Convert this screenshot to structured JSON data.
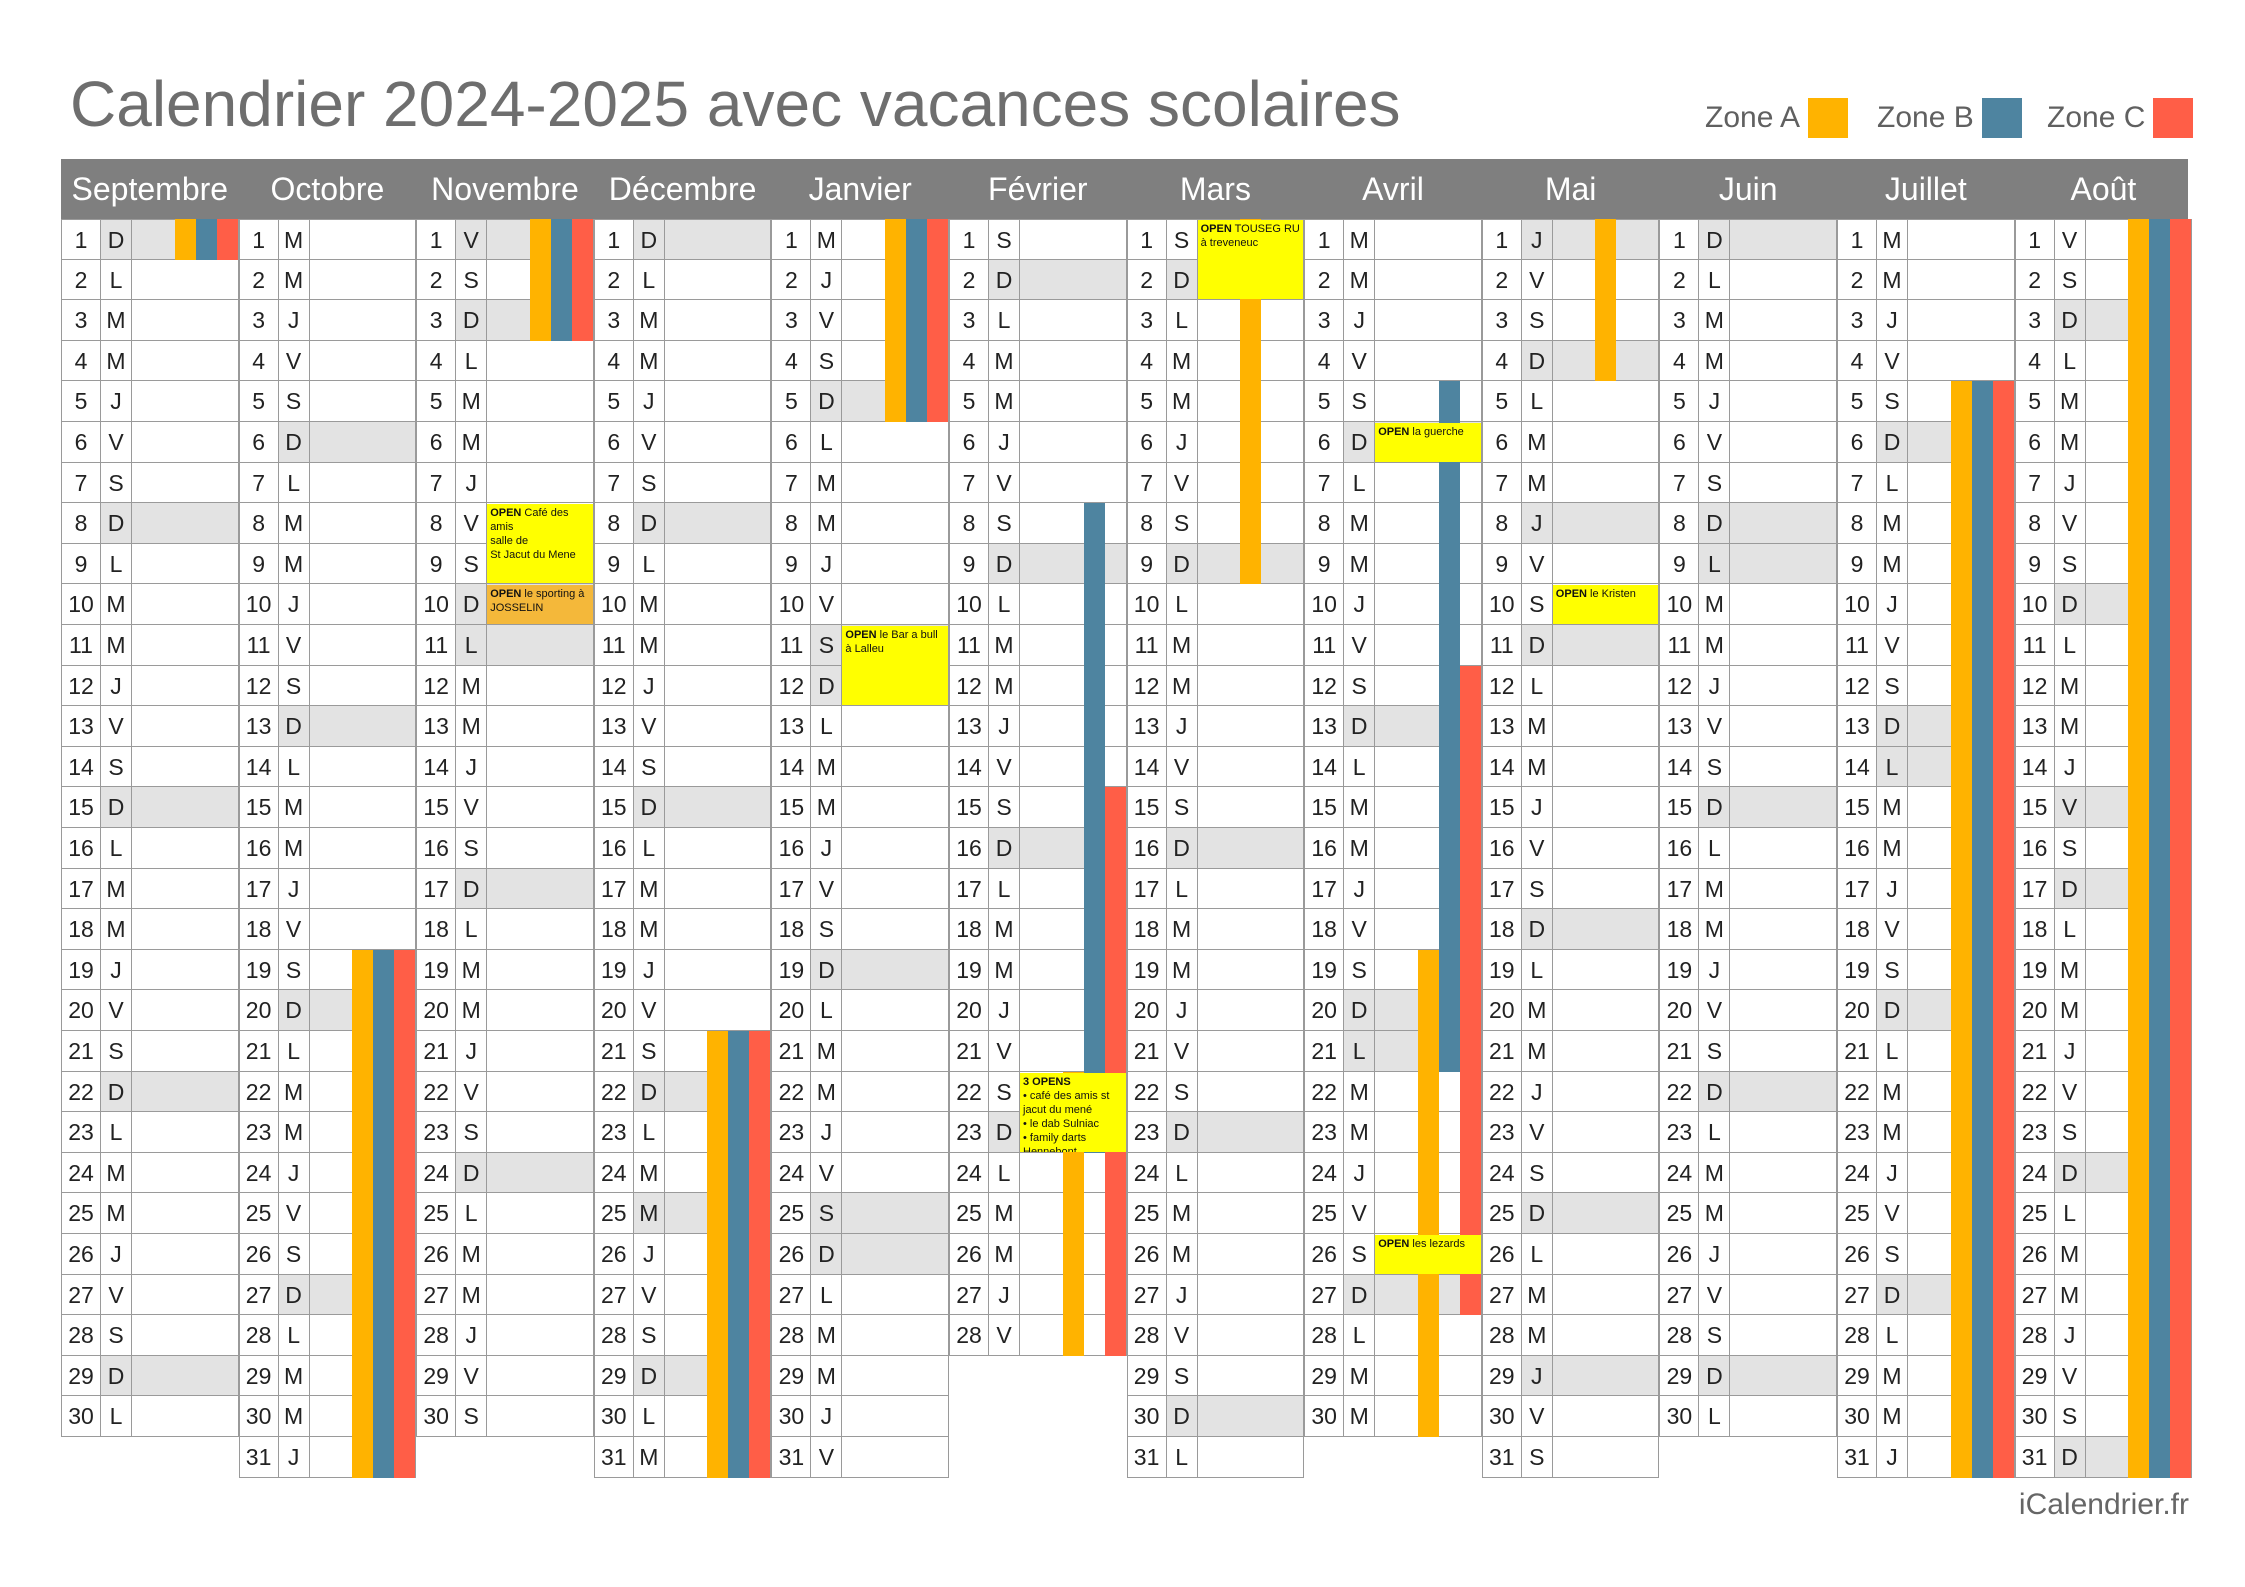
{
  "title": "Calendrier 2024-2025 avec vacances scolaires",
  "brand": "iCalendrier.fr",
  "legend": [
    {
      "label": "Zone A",
      "color": "#FFB300"
    },
    {
      "label": "Zone B",
      "color": "#4E84A0"
    },
    {
      "label": "Zone C",
      "color": "#FF5E47"
    }
  ],
  "colors": {
    "header": "#7F7F7F",
    "weekend": "#E3E3E3",
    "border": "#9A9A9A",
    "note": "#FFFF00"
  },
  "months": [
    {
      "name": "Septembre",
      "days": 30,
      "start": 0
    },
    {
      "name": "Octobre",
      "days": 31,
      "start": 2
    },
    {
      "name": "Novembre",
      "days": 30,
      "start": 5
    },
    {
      "name": "Décembre",
      "days": 31,
      "start": 0
    },
    {
      "name": "Janvier",
      "days": 31,
      "start": 3
    },
    {
      "name": "Février",
      "days": 28,
      "start": 6
    },
    {
      "name": "Mars",
      "days": 31,
      "start": 6
    },
    {
      "name": "Avril",
      "days": 30,
      "start": 2
    },
    {
      "name": "Mai",
      "days": 31,
      "start": 4
    },
    {
      "name": "Juin",
      "days": 30,
      "start": 0
    },
    {
      "name": "Juillet",
      "days": 31,
      "start": 2
    },
    {
      "name": "Août",
      "days": 31,
      "start": 5
    }
  ],
  "weekday_letters": [
    "D",
    "L",
    "M",
    "M",
    "J",
    "V",
    "S"
  ],
  "holidays_shaded": [
    {
      "month": 4,
      "day": 11
    },
    {
      "month": 4,
      "day": 25
    },
    {
      "month": 8,
      "day": 1
    },
    {
      "month": 8,
      "day": 8
    },
    {
      "month": 8,
      "day": 29
    },
    {
      "month": 9,
      "day": 9
    },
    {
      "month": 10,
      "day": 14
    },
    {
      "month": 11,
      "day": 15
    },
    {
      "month": 2,
      "day": 1
    },
    {
      "month": 2,
      "day": 11
    },
    {
      "month": 3,
      "day": 25
    },
    {
      "month": 7,
      "day": 21
    }
  ],
  "vacations": [
    {
      "month": 0,
      "zone": 0,
      "from": 1,
      "to": 1
    },
    {
      "month": 0,
      "zone": 1,
      "from": 1,
      "to": 1
    },
    {
      "month": 0,
      "zone": 2,
      "from": 1,
      "to": 1
    },
    {
      "month": 1,
      "zone": 0,
      "from": 19,
      "to": 31
    },
    {
      "month": 1,
      "zone": 1,
      "from": 19,
      "to": 31
    },
    {
      "month": 1,
      "zone": 2,
      "from": 19,
      "to": 31
    },
    {
      "month": 2,
      "zone": 0,
      "from": 1,
      "to": 3
    },
    {
      "month": 2,
      "zone": 1,
      "from": 1,
      "to": 3
    },
    {
      "month": 2,
      "zone": 2,
      "from": 1,
      "to": 3
    },
    {
      "month": 3,
      "zone": 0,
      "from": 21,
      "to": 31
    },
    {
      "month": 3,
      "zone": 1,
      "from": 21,
      "to": 31
    },
    {
      "month": 3,
      "zone": 2,
      "from": 21,
      "to": 31
    },
    {
      "month": 4,
      "zone": 0,
      "from": 1,
      "to": 5
    },
    {
      "month": 4,
      "zone": 1,
      "from": 1,
      "to": 5
    },
    {
      "month": 4,
      "zone": 2,
      "from": 1,
      "to": 5
    },
    {
      "month": 5,
      "zone": 1,
      "from": 8,
      "to": 23
    },
    {
      "month": 5,
      "zone": 2,
      "from": 15,
      "to": 28
    },
    {
      "month": 5,
      "zone": 0,
      "from": 22,
      "to": 28
    },
    {
      "month": 6,
      "zone": 0,
      "from": 1,
      "to": 9
    },
    {
      "month": 7,
      "zone": 1,
      "from": 5,
      "to": 21
    },
    {
      "month": 7,
      "zone": 2,
      "from": 12,
      "to": 27
    },
    {
      "month": 7,
      "zone": 0,
      "from": 19,
      "to": 30
    },
    {
      "month": 8,
      "zone": 0,
      "from": 1,
      "to": 4
    },
    {
      "month": 10,
      "zone": 0,
      "from": 5,
      "to": 31
    },
    {
      "month": 10,
      "zone": 1,
      "from": 5,
      "to": 31
    },
    {
      "month": 10,
      "zone": 2,
      "from": 5,
      "to": 31
    },
    {
      "month": 11,
      "zone": 0,
      "from": 1,
      "to": 31
    },
    {
      "month": 11,
      "zone": 1,
      "from": 1,
      "to": 31
    },
    {
      "month": 11,
      "zone": 2,
      "from": 1,
      "to": 31
    }
  ],
  "notes": [
    {
      "month": 2,
      "day": 8,
      "rows": 2,
      "lines": [
        [
          "OPEN",
          " Café des amis"
        ],
        [
          "",
          "salle de "
        ],
        [
          "",
          "St Jacut du Mene"
        ]
      ]
    },
    {
      "month": 2,
      "day": 10,
      "rows": 1,
      "lines": [
        [
          "OPEN",
          " le sporting à JOSSELIN"
        ]
      ],
      "bg": "#F4B83A"
    },
    {
      "month": 4,
      "day": 11,
      "rows": 2,
      "lines": [
        [
          "OPEN",
          " le Bar a bull à Lalleu"
        ]
      ]
    },
    {
      "month": 5,
      "day": 22,
      "rows": 2,
      "lines": [
        [
          "3 OPENS",
          ""
        ],
        [
          "",
          "• café des amis st jacut du mené"
        ],
        [
          "",
          "• le dab Sulniac"
        ],
        [
          "",
          "• family darts Hennebont"
        ]
      ]
    },
    {
      "month": 6,
      "day": 1,
      "rows": 2,
      "lines": [
        [
          "OPEN",
          " TOUSEG RU à treveneuc"
        ]
      ]
    },
    {
      "month": 7,
      "day": 6,
      "rows": 1,
      "lines": [
        [
          "OPEN",
          " la guerche"
        ]
      ]
    },
    {
      "month": 8,
      "day": 10,
      "rows": 1,
      "lines": [
        [
          "OPEN",
          " le Kristen"
        ]
      ]
    },
    {
      "month": 7,
      "day": 26,
      "rows": 1,
      "lines": [
        [
          "OPEN",
          " les lezards"
        ]
      ]
    }
  ]
}
